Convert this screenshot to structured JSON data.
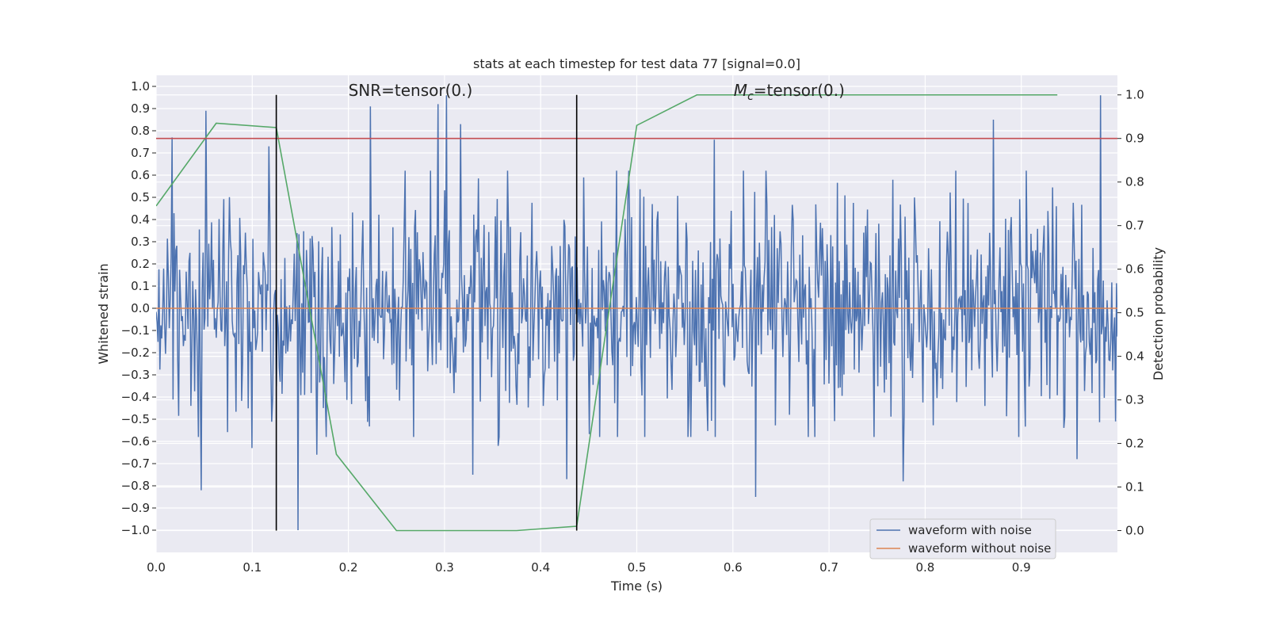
{
  "chart_data": {
    "type": "line",
    "title": "stats at each timestep for test data 77 [signal=0.0]",
    "xlabel": "Time (s)",
    "ylabel_left": "Whitened strain",
    "ylabel_right": "Detection probability",
    "xlim": [
      0.0,
      1.0
    ],
    "ylim_left": [
      -1.1,
      1.05
    ],
    "ylim_right": [
      -0.05,
      1.045
    ],
    "x_ticks": [
      "0.0",
      "0.1",
      "0.2",
      "0.3",
      "0.4",
      "0.5",
      "0.6",
      "0.7",
      "0.8",
      "0.9"
    ],
    "y_left_ticks": [
      "−1.0",
      "−0.9",
      "−0.8",
      "−0.7",
      "−0.6",
      "−0.5",
      "−0.4",
      "−0.3",
      "−0.2",
      "−0.1",
      "0.0",
      "0.1",
      "0.2",
      "0.3",
      "0.4",
      "0.5",
      "0.6",
      "0.7",
      "0.8",
      "0.9",
      "1.0"
    ],
    "y_right_ticks": [
      "0.0",
      "0.1",
      "0.2",
      "0.3",
      "0.4",
      "0.5",
      "0.6",
      "0.7",
      "0.8",
      "0.9",
      "1.0"
    ],
    "grid": true,
    "legend_position": "bottom-right",
    "annotations": [
      {
        "prefix": "SNR=tensor(0.)",
        "italic": "",
        "subscript": "",
        "suffix": "",
        "x": 0.2
      },
      {
        "prefix": "",
        "italic": "M",
        "subscript": "c",
        "suffix": "=tensor(0.)",
        "x": 0.6
      }
    ],
    "series": [
      {
        "name": "waveform with noise",
        "axis": "left",
        "color": "#4c72b0",
        "noise_length": 1024,
        "noise_std": 0.25,
        "spikes": [
          [
            0.017,
            0.77
          ],
          [
            0.052,
            0.89
          ],
          [
            0.047,
            -0.82
          ],
          [
            0.117,
            0.73
          ],
          [
            0.148,
            -1.0
          ],
          [
            0.223,
            0.91
          ],
          [
            0.293,
            0.92
          ],
          [
            0.302,
            0.96
          ],
          [
            0.317,
            0.83
          ],
          [
            0.167,
            -0.66
          ],
          [
            0.329,
            -0.75
          ],
          [
            0.356,
            -0.62
          ],
          [
            0.427,
            -0.77
          ],
          [
            0.581,
            0.76
          ],
          [
            0.624,
            -0.85
          ],
          [
            0.777,
            -0.78
          ],
          [
            0.871,
            0.85
          ],
          [
            0.982,
            0.96
          ],
          [
            0.958,
            -0.68
          ],
          [
            0.1,
            -0.63
          ]
        ]
      },
      {
        "name": "waveform without noise",
        "axis": "left",
        "color": "#dd8452",
        "x": [
          0.0,
          1.0
        ],
        "y": [
          0.0,
          0.0
        ]
      },
      {
        "name": "",
        "axis": "right",
        "color": "#55a868",
        "x": [
          0.0,
          0.0625,
          0.125,
          0.1875,
          0.25,
          0.3125,
          0.375,
          0.4375,
          0.5,
          0.5625,
          0.625,
          0.6875,
          0.75,
          0.8125,
          0.875,
          0.9375
        ],
        "y": [
          0.745,
          0.935,
          0.925,
          0.175,
          0.0,
          0.0,
          0.0,
          0.01,
          0.93,
          1.0,
          1.0,
          1.0,
          1.0,
          1.0,
          1.0,
          1.0
        ]
      },
      {
        "name": "",
        "axis": "right",
        "color": "#c44e52",
        "x": [
          0.0,
          1.0
        ],
        "y": [
          0.9,
          0.9
        ]
      }
    ],
    "vertical_lines": [
      {
        "x": 0.125,
        "y_right": [
          0.0,
          1.0
        ],
        "color": "#000000"
      },
      {
        "x": 0.4375,
        "y_right": [
          0.0,
          1.0
        ],
        "color": "#000000"
      }
    ]
  }
}
